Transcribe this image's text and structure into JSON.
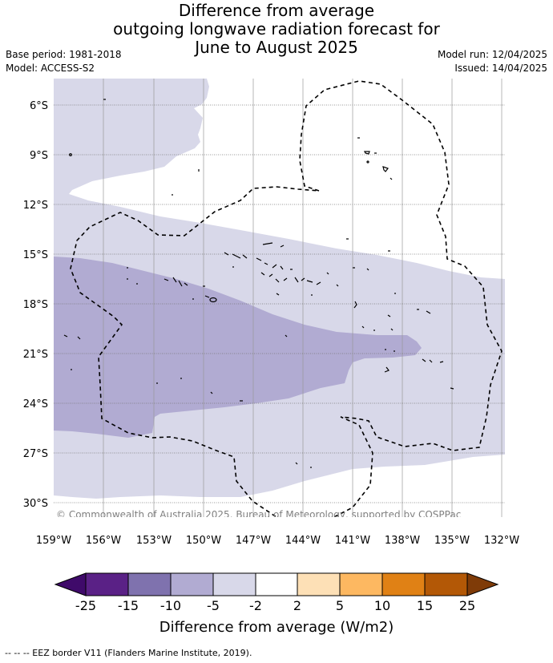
{
  "title": {
    "line1": "Difference from average",
    "line2": "outgoing longwave radiation forecast for",
    "line3": "June to August 2025"
  },
  "meta": {
    "base_period": "Base period: 1981-2018",
    "model": "Model: ACCESS-S2",
    "model_run": "Model run: 12/04/2025",
    "issued": "Issued: 14/04/2025"
  },
  "map": {
    "lon_ticks": [
      "159°W",
      "156°W",
      "153°W",
      "150°W",
      "147°W",
      "144°W",
      "141°W",
      "138°W",
      "135°W",
      "132°W"
    ],
    "lat_ticks": [
      "6°S",
      "9°S",
      "12°S",
      "15°S",
      "18°S",
      "21°S",
      "24°S",
      "27°S",
      "30°S"
    ],
    "copyright": "© Commonwealth of Australia 2025, Bureau of Meteorology, supported by COSPPac",
    "colors": {
      "minus_5_to_minus_2": "#d8d8e9",
      "minus_10_to_minus_5": "#b1abd2",
      "eez_border": "#000000"
    }
  },
  "colorbar": {
    "ticks": [
      "-25",
      "-15",
      "-10",
      "-5",
      "-2",
      "2",
      "5",
      "10",
      "15",
      "25"
    ],
    "colors": [
      "#3f0a6a",
      "#5a2186",
      "#7f72ae",
      "#b1abd2",
      "#d8d8e9",
      "#ffffff",
      "#fde0b6",
      "#fdb861",
      "#e08115",
      "#b35806",
      "#7f3b08"
    ],
    "label": "Difference from average (W/m2)"
  },
  "footer": {
    "legend_text": "-- -- -- EEZ border V11 (Flanders Marine Institute, 2019)."
  }
}
